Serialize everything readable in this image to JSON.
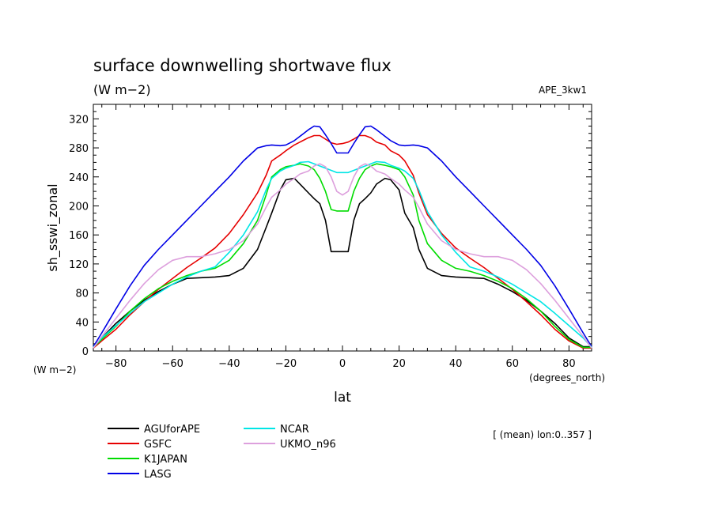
{
  "chart_data": {
    "type": "line",
    "title": "surface downwelling shortwave flux",
    "units": "(W m−2)",
    "experiment": "APE_3kw1",
    "ylabel": "sh_sswi_zonal",
    "xlabel": "lat",
    "x_units": "(degrees_north)",
    "y_units": "(W m−2)",
    "xlim": [
      -88,
      88
    ],
    "ylim": [
      0,
      340
    ],
    "x_ticks": [
      -80,
      -60,
      -40,
      -20,
      0,
      20,
      40,
      60,
      80
    ],
    "y_ticks": [
      0,
      40,
      80,
      120,
      160,
      200,
      240,
      280,
      320
    ],
    "annotation": "[ (mean) lon:0..357 ]",
    "x": [
      -88,
      -85,
      -80,
      -75,
      -70,
      -65,
      -60,
      -55,
      -50,
      -45,
      -40,
      -35,
      -30,
      -27,
      -25,
      -22,
      -20,
      -17,
      -15,
      -12,
      -10,
      -8,
      -6,
      -4,
      -2,
      0,
      2,
      4,
      6,
      8,
      10,
      12,
      15,
      17,
      20,
      22,
      25,
      27,
      30,
      35,
      40,
      45,
      50,
      55,
      60,
      65,
      70,
      75,
      80,
      85,
      88
    ],
    "series": [
      {
        "name": "AGUforAPE",
        "color": "#000000",
        "values": [
          6,
          18,
          38,
          55,
          70,
          82,
          92,
          100,
          101,
          102,
          104,
          114,
          140,
          170,
          190,
          222,
          236,
          238,
          230,
          218,
          210,
          203,
          180,
          137,
          137,
          137,
          137,
          180,
          203,
          210,
          218,
          230,
          238,
          236,
          222,
          190,
          170,
          140,
          114,
          104,
          102,
          101,
          100,
          92,
          82,
          70,
          55,
          38,
          18,
          6,
          6
        ]
      },
      {
        "name": "GSFC",
        "color": "#e60000",
        "values": [
          4,
          14,
          30,
          50,
          68,
          85,
          100,
          115,
          128,
          142,
          162,
          188,
          218,
          242,
          262,
          270,
          276,
          284,
          288,
          294,
          297,
          297,
          292,
          287,
          285,
          286,
          288,
          292,
          297,
          297,
          294,
          288,
          284,
          276,
          270,
          262,
          242,
          218,
          188,
          162,
          142,
          128,
          115,
          100,
          85,
          68,
          50,
          30,
          14,
          4,
          4
        ]
      },
      {
        "name": "K1JAPAN",
        "color": "#00dc00",
        "values": [
          5,
          16,
          34,
          55,
          72,
          86,
          96,
          104,
          110,
          114,
          125,
          148,
          180,
          215,
          240,
          250,
          254,
          256,
          258,
          255,
          250,
          238,
          220,
          195,
          193,
          193,
          193,
          220,
          238,
          250,
          255,
          258,
          256,
          254,
          250,
          240,
          215,
          180,
          148,
          125,
          114,
          110,
          104,
          96,
          86,
          72,
          55,
          34,
          16,
          5,
          5
        ]
      },
      {
        "name": "LASG",
        "color": "#0000e6",
        "values": [
          6,
          25,
          58,
          90,
          118,
          140,
          160,
          180,
          200,
          220,
          240,
          262,
          280,
          283,
          284,
          283,
          284,
          290,
          296,
          305,
          310,
          309,
          298,
          286,
          273,
          273,
          273,
          286,
          298,
          309,
          310,
          305,
          296,
          290,
          284,
          283,
          284,
          283,
          280,
          262,
          240,
          220,
          200,
          180,
          160,
          140,
          118,
          90,
          58,
          25,
          6
        ]
      },
      {
        "name": "NCAR",
        "color": "#00e6e6",
        "values": [
          5,
          18,
          35,
          52,
          68,
          80,
          92,
          102,
          110,
          116,
          136,
          160,
          192,
          222,
          238,
          248,
          252,
          256,
          260,
          261,
          258,
          255,
          252,
          249,
          246,
          246,
          246,
          249,
          252,
          255,
          258,
          261,
          260,
          256,
          252,
          248,
          238,
          222,
          192,
          160,
          136,
          116,
          110,
          102,
          92,
          80,
          68,
          52,
          35,
          18,
          5
        ]
      },
      {
        "name": "UKMO_n96",
        "color": "#dda0dd",
        "values": [
          4,
          20,
          45,
          70,
          93,
          112,
          125,
          130,
          130,
          134,
          140,
          152,
          175,
          198,
          212,
          222,
          230,
          238,
          244,
          248,
          255,
          258,
          254,
          240,
          220,
          215,
          220,
          240,
          254,
          258,
          255,
          248,
          244,
          238,
          230,
          222,
          212,
          198,
          175,
          152,
          140,
          134,
          130,
          130,
          125,
          112,
          93,
          70,
          45,
          20,
          4
        ]
      }
    ]
  }
}
